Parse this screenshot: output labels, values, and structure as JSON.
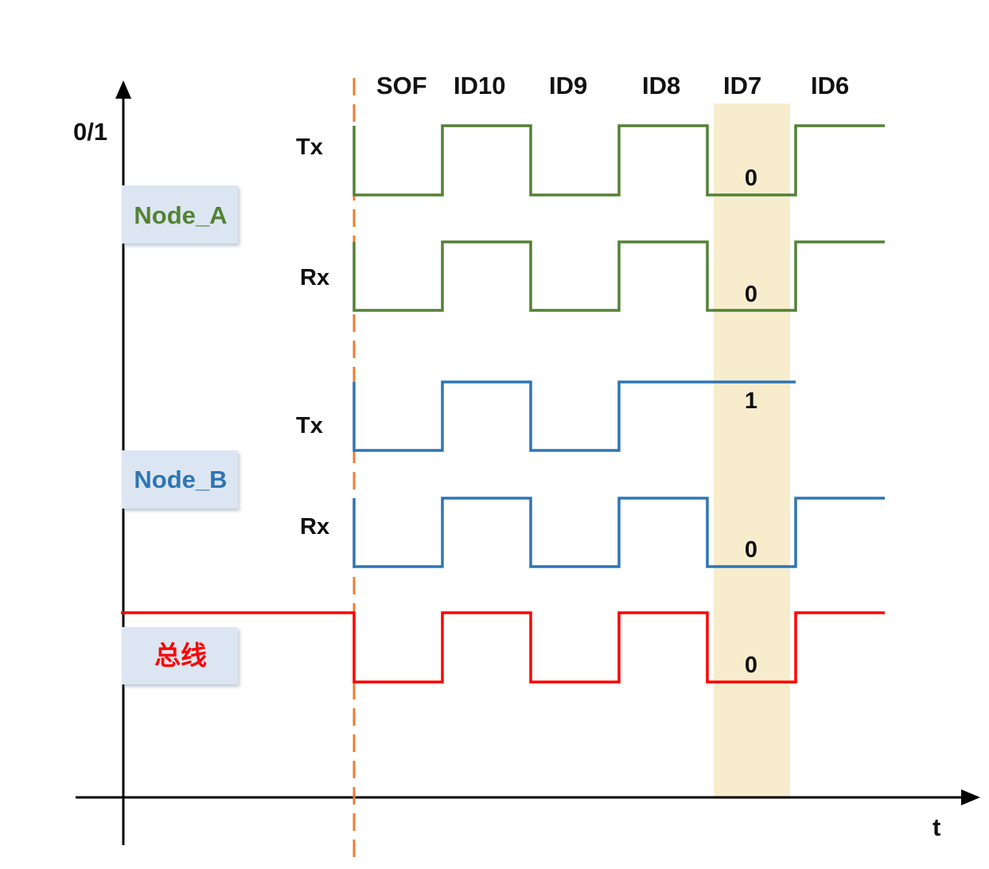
{
  "axes": {
    "y_label": "0/1",
    "x_label": "t"
  },
  "bit_fields": [
    "SOF",
    "ID10",
    "ID9",
    "ID8",
    "ID7",
    "ID6"
  ],
  "highlighted_field": "ID7",
  "nodes": {
    "node_a": {
      "label": "Node_A",
      "color": "#548235",
      "tx": {
        "label": "Tx",
        "levels": [
          0,
          1,
          0,
          1,
          0,
          1
        ],
        "id7_value": "0"
      },
      "rx": {
        "label": "Rx",
        "levels": [
          0,
          1,
          0,
          1,
          0,
          1
        ],
        "id7_value": "0"
      }
    },
    "node_b": {
      "label": "Node_B",
      "color": "#2e75b6",
      "tx": {
        "label": "Tx",
        "levels": [
          0,
          1,
          0,
          1,
          1
        ],
        "id7_value": "1"
      },
      "rx": {
        "label": "Rx",
        "levels": [
          0,
          1,
          0,
          1,
          0,
          1
        ],
        "id7_value": "0"
      }
    }
  },
  "bus": {
    "label": "总线",
    "color": "#ff0000",
    "idle_level": 1,
    "levels": [
      0,
      1,
      0,
      1,
      0,
      1
    ],
    "id7_value": "0"
  },
  "colors": {
    "highlight": "#f7edcd",
    "sof_line": "#ed7d31",
    "label_box": "#dce6f2",
    "axis": "#000000"
  }
}
